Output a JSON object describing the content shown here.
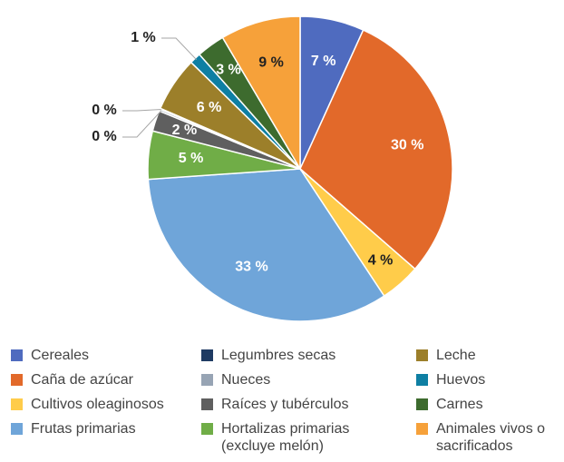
{
  "chart_data": {
    "type": "pie",
    "categories": [
      "Cereales",
      "Caña de azúcar",
      "Cultivos oleaginosos",
      "Frutas primarias",
      "Hortalizas primarias (excluye melón)",
      "Raíces y tubérculos",
      "Nueces",
      "Legumbres secas",
      "Leche",
      "Huevos",
      "Carnes",
      "Animales vivos o sacrificados"
    ],
    "values": [
      6.8,
      29.6,
      4.3,
      33.2,
      5.1,
      2.2,
      0.2,
      0.1,
      5.8,
      1.2,
      3.0,
      8.5
    ],
    "value_labels": [
      "7 %",
      "30 %",
      "4 %",
      "33 %",
      "5 %",
      "2 %",
      "0 %",
      "0 %",
      "6 %",
      "1 %",
      "3 %",
      "9 %"
    ],
    "colors": [
      "#4f6bbf",
      "#e2692a",
      "#ffcc4a",
      "#6fa5d9",
      "#70ad47",
      "#5f5f5f",
      "#97a4b4",
      "#1f3b63",
      "#9c7f2a",
      "#0e7fa3",
      "#3d6b2e",
      "#f6a13a"
    ]
  }
}
